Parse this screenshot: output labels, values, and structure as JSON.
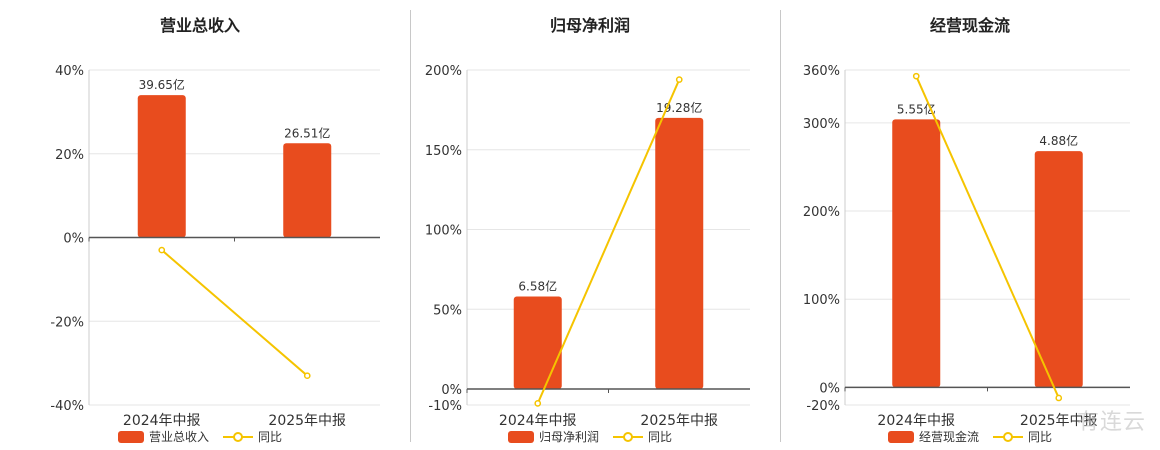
{
  "colors": {
    "bar": "#e84c1e",
    "line": "#f5c400",
    "grid": "#e6e6e6",
    "axis": "#555555"
  },
  "watermark": "有连云",
  "chart_data": [
    {
      "type": "bar",
      "title": "营业总收入",
      "categories": [
        "2024年中报",
        "2025年中报"
      ],
      "bar_series": {
        "name": "营业总收入",
        "values": [
          39.65,
          26.51
        ],
        "labels": [
          "39.65亿",
          "26.51亿"
        ],
        "unit": "亿"
      },
      "line_series": {
        "name": "同比",
        "values": [
          -3,
          -33
        ]
      },
      "ylim": [
        -40,
        40
      ],
      "yticks": [
        40,
        20,
        0,
        -20,
        -40
      ],
      "yticklabels": [
        "40%",
        "20%",
        "0%",
        "-20%",
        "-40%"
      ],
      "bar_heights_pct": [
        34,
        22.5
      ],
      "grid": true,
      "legend": "bottom"
    },
    {
      "type": "bar",
      "title": "归母净利润",
      "categories": [
        "2024年中报",
        "2025年中报"
      ],
      "bar_series": {
        "name": "归母净利润",
        "values": [
          6.58,
          19.28
        ],
        "labels": [
          "6.58亿",
          "19.28亿"
        ],
        "unit": "亿"
      },
      "line_series": {
        "name": "同比",
        "values": [
          -9,
          194
        ]
      },
      "ylim": [
        -10,
        200
      ],
      "yticks": [
        200,
        150,
        100,
        50,
        0,
        -10
      ],
      "yticklabels": [
        "200%",
        "150%",
        "100%",
        "50%",
        "0%",
        "-10%"
      ],
      "bar_heights_pct": [
        58,
        170
      ],
      "grid": true,
      "legend": "bottom"
    },
    {
      "type": "bar",
      "title": "经营现金流",
      "categories": [
        "2024年中报",
        "2025年中报"
      ],
      "bar_series": {
        "name": "经营现金流",
        "values": [
          5.55,
          4.88
        ],
        "labels": [
          "5.55亿",
          "4.88亿"
        ],
        "unit": "亿"
      },
      "line_series": {
        "name": "同比",
        "values": [
          353,
          -12
        ]
      },
      "ylim": [
        -20,
        360
      ],
      "yticks": [
        360,
        300,
        200,
        100,
        0,
        -20
      ],
      "yticklabels": [
        "360%",
        "300%",
        "200%",
        "100%",
        "0%",
        "-20%"
      ],
      "bar_heights_pct": [
        304,
        268
      ],
      "grid": true,
      "legend": "bottom"
    }
  ]
}
